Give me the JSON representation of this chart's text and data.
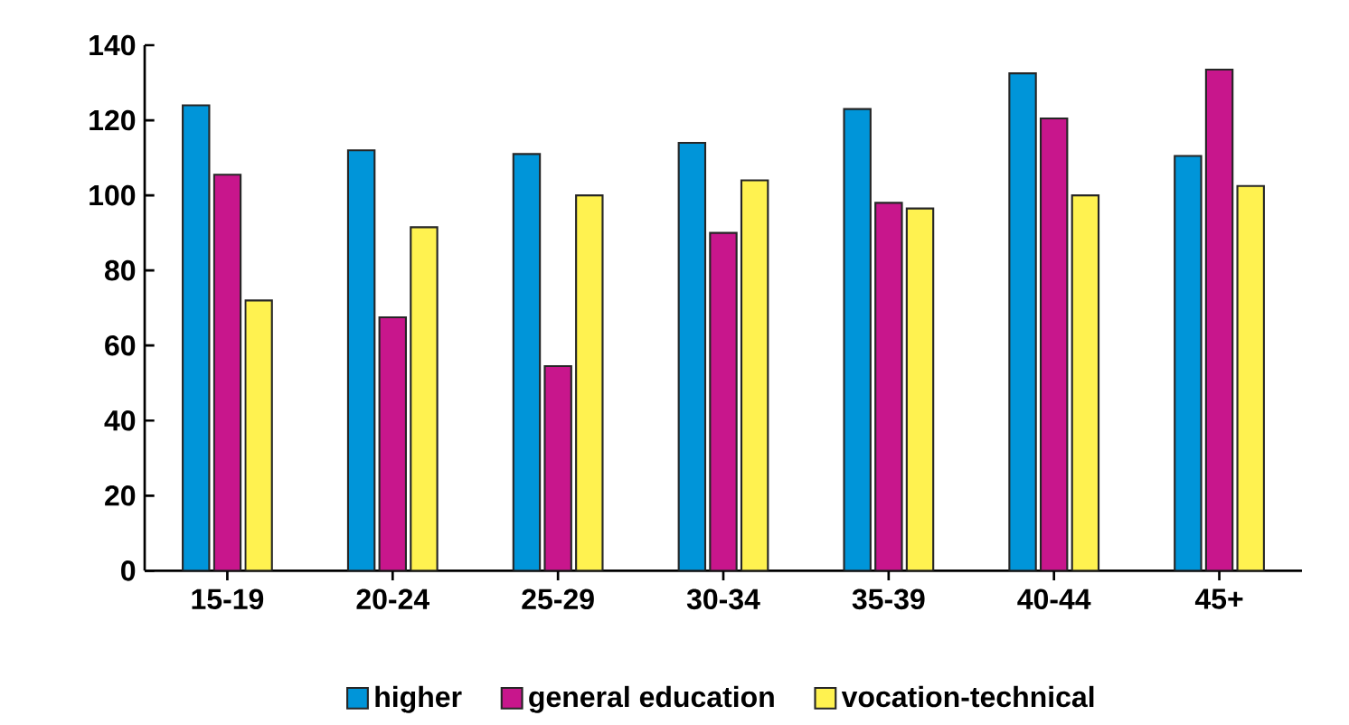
{
  "chart_data": {
    "type": "bar",
    "categories": [
      "15-19",
      "20-24",
      "25-29",
      "30-34",
      "35-39",
      "40-44",
      "45+"
    ],
    "series": [
      {
        "name": "higher",
        "color": "#0095d9",
        "values": [
          124,
          112,
          111,
          114,
          123,
          132.5,
          110.5
        ]
      },
      {
        "name": "general education",
        "color": "#c8168c",
        "values": [
          105.5,
          67.5,
          54.5,
          90,
          98,
          120.5,
          133.5
        ]
      },
      {
        "name": "vocation-technical",
        "color": "#fff250",
        "values": [
          72,
          91.5,
          100,
          104,
          96.5,
          100,
          102.5
        ]
      }
    ],
    "ylim": [
      0,
      140
    ],
    "yticks": [
      0,
      20,
      40,
      60,
      80,
      100,
      120,
      140
    ],
    "grid": false,
    "legend": "bottom"
  }
}
